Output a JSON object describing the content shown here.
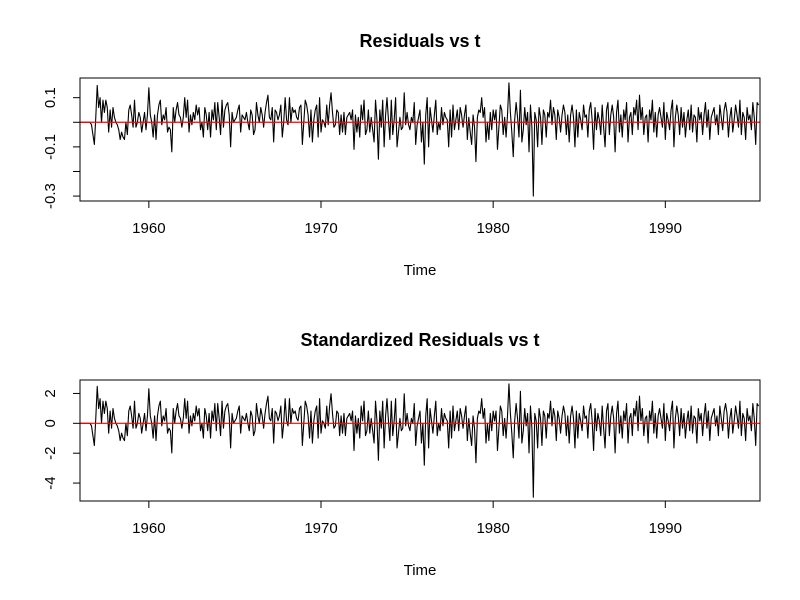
{
  "chart_data": [
    {
      "type": "line",
      "title": "Residuals vs t",
      "xlabel": "Time",
      "ylabel": "",
      "xlim": [
        1956,
        1995.5
      ],
      "ylim": [
        -0.32,
        0.18
      ],
      "x_ticks": [
        1960,
        1970,
        1980,
        1990
      ],
      "x_tick_labels": [
        "1960",
        "1970",
        "1980",
        "1990"
      ],
      "y_ticks": [
        -0.3,
        -0.2,
        -0.1,
        0.0,
        0.1
      ],
      "y_tick_labels": [
        "-0.3",
        "",
        "-0.1",
        "",
        "0.1"
      ],
      "reference_line": {
        "y": 0,
        "color": "#ff0000"
      },
      "series": [
        {
          "color": "#000000",
          "x_start": 1956.0,
          "x_step": 0.0833333,
          "values": [
            0.0,
            0.0,
            0.0,
            0.0,
            0.0,
            0.0,
            0.0,
            0.0,
            -0.01,
            -0.05,
            -0.09,
            0.02,
            0.15,
            0.06,
            0.1,
            0.0,
            0.09,
            0.04,
            0.09,
            0.06,
            -0.04,
            0.05,
            -0.02,
            0.06,
            0.02,
            0.0,
            -0.01,
            -0.03,
            -0.07,
            -0.04,
            -0.06,
            -0.07,
            0.0,
            -0.05,
            0.05,
            0.07,
            0.03,
            -0.02,
            0.09,
            -0.02,
            0.0,
            0.04,
            0.02,
            -0.04,
            0.0,
            0.04,
            -0.03,
            0.03,
            0.14,
            0.03,
            0.0,
            -0.06,
            0.03,
            -0.07,
            0.03,
            0.07,
            0.09,
            -0.01,
            0.03,
            0.01,
            0.06,
            -0.04,
            -0.02,
            -0.03,
            -0.12,
            0.06,
            0.0,
            0.05,
            0.08,
            0.03,
            0.02,
            -0.02,
            0.02,
            0.1,
            0.02,
            0.09,
            -0.04,
            0.03,
            -0.01,
            0.04,
            0.01,
            0.07,
            0.03,
            0.06,
            -0.03,
            0.0,
            -0.06,
            0.06,
            0.03,
            -0.03,
            0.04,
            -0.06,
            0.05,
            0.01,
            0.08,
            -0.03,
            0.08,
            0.02,
            -0.05,
            0.09,
            -0.02,
            0.05,
            0.07,
            0.08,
            0.03,
            -0.1,
            0.04,
            0.0,
            0.01,
            0.02,
            0.05,
            0.07,
            -0.04,
            0.03,
            0.02,
            0.01,
            0.04,
            0.0,
            -0.03,
            0.05,
            0.03,
            -0.05,
            -0.03,
            0.08,
            0.03,
            0.0,
            0.06,
            0.03,
            -0.02,
            0.04,
            0.08,
            0.11,
            0.02,
            0.01,
            0.06,
            -0.08,
            0.05,
            0.04,
            0.01,
            0.03,
            0.07,
            -0.06,
            0.0,
            0.1,
            0.01,
            -0.01,
            0.1,
            0.0,
            0.06,
            0.04,
            0.05,
            0.02,
            0.01,
            0.06,
            0.07,
            -0.09,
            0.0,
            0.09,
            0.07,
            0.03,
            -0.06,
            0.05,
            -0.08,
            0.01,
            0.05,
            0.07,
            -0.06,
            0.1,
            -0.04,
            0.01,
            0.0,
            -0.02,
            0.07,
            -0.01,
            0.07,
            0.12,
            0.04,
            -0.02,
            -0.01,
            0.05,
            0.04,
            -0.05,
            0.03,
            -0.04,
            0.04,
            -0.05,
            0.02,
            0.03,
            0.04,
            0.01,
            0.05,
            -0.11,
            0.03,
            -0.04,
            0.02,
            -0.06,
            0.07,
            0.01,
            0.09,
            -0.05,
            -0.03,
            0.05,
            -0.04,
            0.02,
            -0.03,
            -0.08,
            0.09,
            0.01,
            -0.15,
            0.05,
            -0.02,
            0.09,
            -0.1,
            0.03,
            0.1,
            0.01,
            -0.07,
            0.09,
            -0.05,
            0.01,
            0.1,
            -0.1,
            -0.04,
            0.02,
            -0.03,
            -0.02,
            0.12,
            -0.01,
            0.04,
            -0.01,
            -0.03,
            0.02,
            0.0,
            0.08,
            -0.09,
            -0.01,
            0.02,
            0.05,
            -0.08,
            0.0,
            -0.17,
            0.03,
            0.1,
            -0.1,
            0.06,
            0.01,
            -0.04,
            0.03,
            0.09,
            -0.05,
            0.0,
            -0.03,
            0.06,
            -0.01,
            0.04,
            0.02,
            0.01,
            -0.1,
            0.05,
            -0.06,
            0.07,
            -0.03,
            0.01,
            0.05,
            -0.03,
            0.06,
            0.03,
            -0.02,
            0.03,
            0.07,
            -0.07,
            0.02,
            -0.04,
            -0.09,
            0.03,
            -0.02,
            -0.16,
            0.02,
            0.05,
            0.04,
            0.1,
            0.02,
            0.06,
            -0.08,
            0.0,
            -0.07,
            0.04,
            -0.03,
            0.05,
            0.01,
            0.05,
            -0.11,
            -0.02,
            0.07,
            0.05,
            -0.05,
            0.02,
            -0.06,
            0.03,
            0.16,
            0.04,
            -0.04,
            -0.14,
            0.01,
            0.08,
            0.02,
            -0.06,
            0.13,
            -0.08,
            -0.03,
            0.06,
            -0.01,
            0.04,
            -0.12,
            0.07,
            -0.02,
            -0.3,
            0.04,
            0.01,
            -0.1,
            0.06,
            0.02,
            -0.09,
            0.05,
            0.03,
            -0.06,
            0.04,
            0.02,
            0.09,
            -0.01,
            0.06,
            0.03,
            -0.07,
            0.05,
            0.02,
            -0.04,
            0.03,
            0.07,
            0.04,
            -0.05,
            0.03,
            -0.08,
            0.03,
            0.07,
            0.02,
            -0.1,
            0.05,
            -0.06,
            0.04,
            0.01,
            -0.03,
            0.07,
            0.02,
            0.03,
            -0.06,
            0.05,
            0.08,
            0.01,
            -0.11,
            0.06,
            -0.03,
            0.04,
            0.01,
            -0.05,
            0.07,
            -0.02,
            -0.1,
            0.05,
            0.08,
            -0.05,
            0.03,
            0.07,
            0.02,
            -0.12,
            0.04,
            0.09,
            -0.04,
            0.03,
            -0.06,
            0.05,
            0.01,
            0.08,
            -0.08,
            0.02,
            0.04,
            -0.05,
            0.06,
            0.03,
            0.09,
            -0.03,
            0.11,
            0.01,
            0.06,
            -0.05,
            0.02,
            0.03,
            -0.08,
            0.05,
            0.01,
            0.09,
            -0.04,
            0.04,
            -0.06,
            0.03,
            0.06,
            0.02,
            -0.02,
            0.08,
            -0.07,
            0.04,
            0.01,
            -0.03,
            0.05,
            0.09,
            -0.1,
            0.02,
            0.07,
            0.03,
            -0.05,
            0.06,
            -0.02,
            0.04,
            -0.06,
            0.01,
            0.05,
            -0.03,
            0.07,
            -0.04,
            0.03,
            0.02,
            -0.08,
            0.06,
            0.01,
            0.04,
            -0.05,
            0.03,
            0.08,
            -0.02,
            0.05,
            -0.07,
            0.02,
            0.04,
            0.06,
            -0.01,
            0.03,
            -0.05,
            0.07,
            0.02,
            -0.03,
            0.05,
            0.08,
            0.04,
            -0.06,
            0.02,
            0.06,
            -0.04,
            0.01,
            0.07,
            0.03,
            -0.02,
            0.09,
            -0.05,
            0.04,
            0.02,
            -0.07,
            0.06,
            0.01,
            0.03,
            -0.03,
            0.08,
            0.02,
            -0.09,
            0.08,
            0.07
          ]
        }
      ]
    },
    {
      "type": "line",
      "title": "Standardized Residuals vs t",
      "xlabel": "Time",
      "ylabel": "",
      "xlim": [
        1956,
        1995.5
      ],
      "ylim": [
        -5.2,
        2.9
      ],
      "x_ticks": [
        1960,
        1970,
        1980,
        1990
      ],
      "x_tick_labels": [
        "1960",
        "1970",
        "1980",
        "1990"
      ],
      "y_ticks": [
        -4,
        -2,
        0,
        2
      ],
      "y_tick_labels": [
        "-4",
        "-2",
        "0",
        "2"
      ],
      "reference_line": {
        "y": 0,
        "color": "#ff0000"
      },
      "series": [
        {
          "color": "#000000",
          "derived_from": "scaled",
          "scale": 16.5
        }
      ]
    }
  ]
}
